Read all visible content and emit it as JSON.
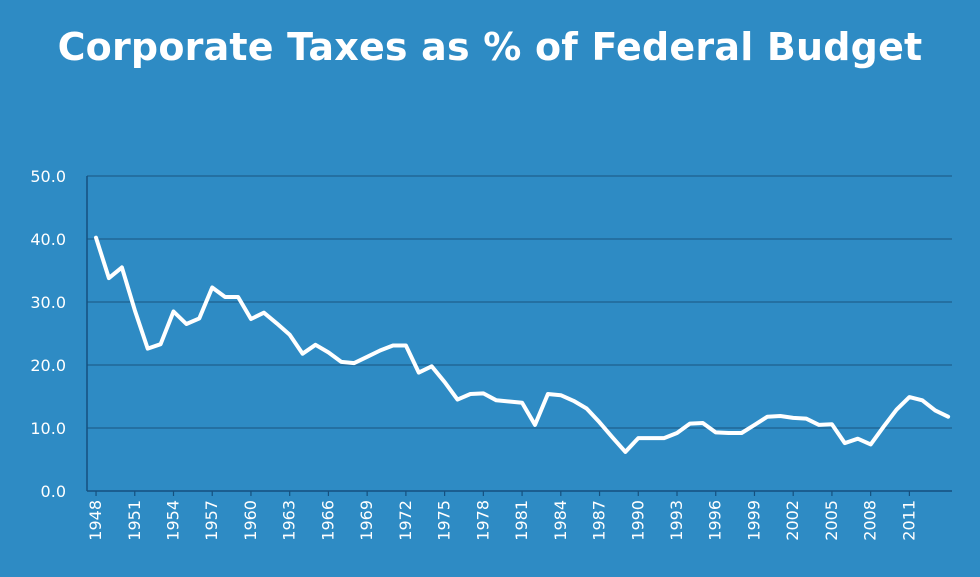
{
  "chart_data": {
    "type": "line",
    "title": "Corporate Taxes as % of Federal Budget",
    "xlabel": "",
    "ylabel": "",
    "ylim": [
      0,
      50
    ],
    "yticks": [
      0,
      10,
      20,
      30,
      40,
      50
    ],
    "ytick_labels": [
      "0.0",
      "10.0",
      "20.0",
      "30.0",
      "40.0",
      "50.0"
    ],
    "xticks": [
      1948,
      1951,
      1954,
      1957,
      1960,
      1963,
      1966,
      1969,
      1972,
      1975,
      1978,
      1981,
      1984,
      1987,
      1990,
      1993,
      1996,
      1999,
      2002,
      2005,
      2008,
      2011
    ],
    "xtick_labels": [
      "1948",
      "1951",
      "1954",
      "1957",
      "1960",
      "1963",
      "1966",
      "1969",
      "1972",
      "1975",
      "1978",
      "1981",
      "1984",
      "1987",
      "1990",
      "1993",
      "1996",
      "1999",
      "2002",
      "2005",
      "2008",
      "2011"
    ],
    "xlim": [
      1947.3,
      2014.3
    ],
    "grid": true,
    "colors": {
      "background": "#2e8bc4",
      "line": "#ffffff",
      "grid": "#1e5f8e",
      "axis": "#15507e",
      "text": "#ffffff"
    },
    "series": [
      {
        "name": "Corporate Taxes",
        "x": [
          1948,
          1949,
          1950,
          1951,
          1952,
          1953,
          1954,
          1955,
          1956,
          1957,
          1958,
          1959,
          1960,
          1961,
          1962,
          1963,
          1964,
          1965,
          1966,
          1967,
          1968,
          1969,
          1970,
          1971,
          1972,
          1973,
          1974,
          1975,
          1976,
          1977,
          1978,
          1979,
          1980,
          1981,
          1982,
          1983,
          1984,
          1985,
          1986,
          1987,
          1988,
          1989,
          1990,
          1991,
          1992,
          1993,
          1994,
          1995,
          1996,
          1997,
          1998,
          1999,
          2000,
          2001,
          2002,
          2003,
          2004,
          2005,
          2006,
          2007,
          2008,
          2009,
          2010,
          2011,
          2012,
          2013,
          2014
        ],
        "values": [
          40.2,
          33.8,
          35.5,
          28.7,
          22.6,
          23.3,
          28.5,
          26.5,
          27.4,
          32.3,
          30.8,
          30.8,
          27.3,
          28.3,
          26.6,
          24.8,
          21.8,
          23.2,
          22.0,
          20.5,
          20.3,
          21.3,
          22.3,
          23.1,
          23.1,
          18.8,
          19.8,
          17.3,
          14.5,
          15.4,
          15.5,
          14.4,
          14.2,
          14.0,
          10.5,
          15.4,
          15.2,
          14.3,
          13.1,
          10.9,
          8.5,
          6.2,
          8.4,
          8.4,
          8.4,
          9.2,
          10.7,
          10.8,
          9.3,
          9.2,
          9.2,
          10.5,
          11.8,
          11.9,
          11.6,
          11.5,
          10.5,
          10.6,
          7.6,
          8.3,
          7.4,
          10.2,
          12.9,
          14.9,
          14.4,
          12.8,
          11.8
        ]
      }
    ]
  }
}
